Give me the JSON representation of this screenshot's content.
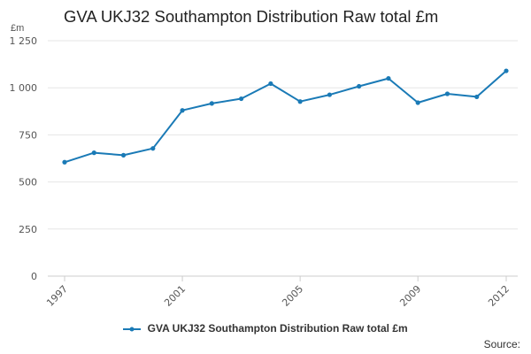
{
  "unit_label": "£m",
  "source_label": "Source:",
  "colors": {
    "series": "#1a7ab6",
    "grid": "#e6e6e6",
    "axis_text": "#555555"
  },
  "chart_data": {
    "type": "line",
    "title": "GVA UKJ32 Southampton Distribution Raw total £m",
    "xlabel": "",
    "ylabel": "£m",
    "x": [
      1997,
      1998,
      1999,
      2000,
      2001,
      2002,
      2003,
      2004,
      2005,
      2006,
      2007,
      2008,
      2009,
      2010,
      2011,
      2012
    ],
    "x_tick_labels": [
      "1997",
      "2001",
      "2005",
      "2009",
      "2012"
    ],
    "y_ticks": [
      0,
      250,
      500,
      750,
      1000,
      1250
    ],
    "y_tick_labels": [
      "0",
      "250",
      "500",
      "750",
      "1 000",
      "1 250"
    ],
    "ylim": [
      0,
      1250
    ],
    "grid": true,
    "legend_position": "bottom",
    "series": [
      {
        "name": "GVA UKJ32 Southampton Distribution Raw total £m",
        "values": [
          605,
          655,
          642,
          678,
          880,
          917,
          942,
          1022,
          927,
          963,
          1008,
          1050,
          921,
          968,
          952,
          1090
        ]
      }
    ]
  }
}
